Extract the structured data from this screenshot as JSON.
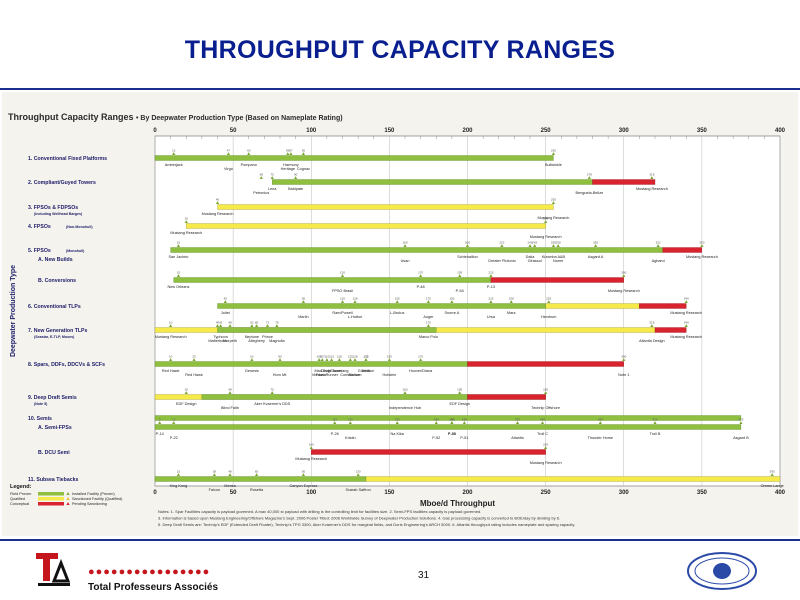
{
  "slide": {
    "title": "THROUGHPUT CAPACITY RANGES",
    "footer_dots": "●●●●●●●●●●●●●●●●",
    "footer_name": "Total Professeurs Associés",
    "page_number": "31"
  },
  "colors": {
    "proven": "#8fbf3f",
    "qualified": "#f5ea4a",
    "conceptual": "#d9232e",
    "marker_installed": "#7aa830",
    "marker_sanctioned": "#e0c020",
    "marker_pending": "#d9232e",
    "title_blue": "#0a1f8f",
    "label_blue": "#20206a"
  },
  "chart_data": {
    "type": "range-bar",
    "title": "Throughput Capacity Ranges",
    "subtitle": "• By Deepwater Production Type (Based on Nameplate Rating)",
    "xlabel": "Mboe/d Throughput",
    "ylabel": "Deepwater Production Type",
    "xlim": [
      0,
      400
    ],
    "xticks": [
      0,
      50,
      100,
      150,
      200,
      250,
      300,
      350,
      400
    ],
    "legend": {
      "title": "Legend:",
      "bars": [
        "Field Proven",
        "Qualified",
        "Conceptual"
      ],
      "markers": [
        "Installed Facility (Proven)",
        "Sanctioned Facility (Qualified)",
        "Pending Sanctioning"
      ]
    },
    "categories": [
      {
        "label": "1. Conventional Fixed Platforms",
        "sub": "",
        "proven": [
          0,
          255
        ],
        "qualified": null,
        "conceptual": null,
        "facilities": [
          {
            "name": "Amberjack",
            "x": 12
          },
          {
            "name": "Virgo",
            "x": 47
          },
          {
            "name": "Pompano",
            "x": 60
          },
          {
            "name": "Heritage",
            "x": 85
          },
          {
            "name": "Harmony",
            "x": 87
          },
          {
            "name": "Cognac",
            "x": 95
          },
          {
            "name": "Bullwinkle",
            "x": 255
          }
        ]
      },
      {
        "label": "2. Compliant/Guyed Towers",
        "sub": "",
        "proven": [
          75,
          280
        ],
        "qualified": null,
        "conceptual": [
          280,
          320
        ],
        "facilities": [
          {
            "name": "Lena",
            "x": 75
          },
          {
            "name": "Petronius",
            "x": 68
          },
          {
            "name": "Baldpate",
            "x": 90
          },
          {
            "name": "Benguela-Belize",
            "x": 278
          },
          {
            "name": "Mustang Research",
            "x": 318
          }
        ]
      },
      {
        "label": "3. FPSOs & FDPSOs",
        "sub": "(Including Wellhead Barges)",
        "proven": null,
        "qualified": [
          40,
          255
        ],
        "conceptual": null,
        "facilities": [
          {
            "name": "Mustang Research",
            "x": 40
          },
          {
            "name": "Mustang Research",
            "x": 255
          }
        ]
      },
      {
        "label": "4. FPSOs",
        "sub": "(Non-Monohull)",
        "proven": null,
        "qualified": [
          20,
          250
        ],
        "conceptual": null,
        "facilities": [
          {
            "name": "Mustang Research",
            "x": 20
          },
          {
            "name": "Mustang Research",
            "x": 250
          }
        ]
      },
      {
        "label": "5. FPSOs",
        "sub": "(Monohull)",
        "proven": [
          10,
          325
        ],
        "qualified": null,
        "conceptual": [
          325,
          350
        ],
        "facilities": [
          {
            "name": "San Jacinto",
            "x": 15
          },
          {
            "name": "Usan",
            "x": 160
          },
          {
            "name": "Schiehallion",
            "x": 200
          },
          {
            "name": "Greater Plutonio",
            "x": 222
          },
          {
            "name": "Dalia",
            "x": 240
          },
          {
            "name": "Girassol",
            "x": 243
          },
          {
            "name": "Kizomba A&B",
            "x": 255
          },
          {
            "name": "Norne",
            "x": 258
          },
          {
            "name": "Asgard A",
            "x": 282
          },
          {
            "name": "Agbami",
            "x": 322
          },
          {
            "name": "Mustang Research",
            "x": 350
          }
        ]
      },
      {
        "label": "A. New Builds",
        "sub": "",
        "proven": null,
        "qualified": null,
        "conceptual": null,
        "facilities": []
      },
      {
        "label": "B. Conversions",
        "sub": "",
        "proven": [
          12,
          215
        ],
        "qualified": null,
        "conceptual": [
          215,
          300
        ],
        "facilities": [
          {
            "name": "New Orleans",
            "x": 15
          },
          {
            "name": "FPSO Brasil",
            "x": 120
          },
          {
            "name": "P-48",
            "x": 170
          },
          {
            "name": "P-54",
            "x": 195
          },
          {
            "name": "P-13",
            "x": 215
          },
          {
            "name": "Mustang Research",
            "x": 300
          }
        ]
      },
      {
        "label": "6. Conventional TLPs",
        "sub": "",
        "proven": [
          40,
          250
        ],
        "qualified": [
          250,
          310
        ],
        "conceptual": [
          310,
          340
        ],
        "facilities": [
          {
            "name": "Joliet",
            "x": 45
          },
          {
            "name": "Marlin",
            "x": 95
          },
          {
            "name": "Ram/Powell",
            "x": 120
          },
          {
            "name": "L-Hutton",
            "x": 128
          },
          {
            "name": "L-Brutus",
            "x": 155
          },
          {
            "name": "Auger",
            "x": 175
          },
          {
            "name": "Snorre A",
            "x": 190
          },
          {
            "name": "Ursa",
            "x": 215
          },
          {
            "name": "Mars",
            "x": 228
          },
          {
            "name": "Hexdrum",
            "x": 252
          },
          {
            "name": "Mustang Research",
            "x": 340
          }
        ]
      },
      {
        "label": "7. New Generation TLPs",
        "sub": "(Seastar, E-TLP, Moses)",
        "proven": [
          40,
          180
        ],
        "qualified": [
          0,
          320
        ],
        "conceptual": [
          320,
          340
        ],
        "facilities": [
          {
            "name": "Mustang Research",
            "x": 10
          },
          {
            "name": "Matterhorn",
            "x": 40
          },
          {
            "name": "Typhoon",
            "x": 42
          },
          {
            "name": "Morpeth",
            "x": 48
          },
          {
            "name": "Neptune",
            "x": 62
          },
          {
            "name": "Allegheny",
            "x": 65
          },
          {
            "name": "Prince",
            "x": 72
          },
          {
            "name": "Magnolia",
            "x": 78
          },
          {
            "name": "Marco Polo",
            "x": 175
          },
          {
            "name": "Atlantia Design",
            "x": 318
          },
          {
            "name": "Mustang Research",
            "x": 340
          }
        ]
      },
      {
        "label": "8. Spars, DDFs, DDCVs & SCFs",
        "sub": "",
        "proven": [
          0,
          200
        ],
        "qualified": null,
        "conceptual": [
          200,
          300
        ],
        "facilities": [
          {
            "name": "Red Hawk",
            "x": 10
          },
          {
            "name": "Red Hawk",
            "x": 25
          },
          {
            "name": "Genesis",
            "x": 62
          },
          {
            "name": "Horn Mt.",
            "x": 80
          },
          {
            "name": "Mad Dog",
            "x": 107
          },
          {
            "name": "Front Runner",
            "x": 110
          },
          {
            "name": "Devils Tower",
            "x": 113
          },
          {
            "name": "Medusa",
            "x": 105
          },
          {
            "name": "Boomvang",
            "x": 118
          },
          {
            "name": "Nansen",
            "x": 128
          },
          {
            "name": "Gunnison",
            "x": 135
          },
          {
            "name": "Constitution",
            "x": 125
          },
          {
            "name": "Tahiti",
            "x": 135
          },
          {
            "name": "Holstein",
            "x": 150
          },
          {
            "name": "Hoover/Diana",
            "x": 170
          },
          {
            "name": "Note 1",
            "x": 300
          }
        ]
      },
      {
        "label": "9. Deep Draft Semis",
        "sub": "(Note 5)",
        "proven": [
          30,
          200
        ],
        "qualified": [
          0,
          250
        ],
        "conceptual": [
          200,
          250
        ],
        "facilities": [
          {
            "name": "EDF Design",
            "x": 20
          },
          {
            "name": "Blind Faith",
            "x": 48
          },
          {
            "name": "Aker Kvaerner's DDS",
            "x": 75
          },
          {
            "name": "Independence Hub",
            "x": 160
          },
          {
            "name": "EDF Design",
            "x": 195
          },
          {
            "name": "Technip Offshore",
            "x": 250
          }
        ]
      },
      {
        "label": "10. Semis",
        "sub": "",
        "proven": [
          0,
          375
        ],
        "qualified": null,
        "conceptual": null,
        "facilities": []
      },
      {
        "label": "A. Semi-FPSs",
        "sub": "",
        "proven": [
          0,
          375
        ],
        "qualified": null,
        "conceptual": null,
        "facilities": [
          {
            "name": "P-14",
            "x": 3
          },
          {
            "name": "P-22",
            "x": 12
          },
          {
            "name": "P-26",
            "x": 115
          },
          {
            "name": "Kristin",
            "x": 125
          },
          {
            "name": "Na Kika",
            "x": 155
          },
          {
            "name": "P-52",
            "x": 180
          },
          {
            "name": "P-40",
            "x": 190
          },
          {
            "name": "P-51",
            "x": 198
          },
          {
            "name": "P-36",
            "x": 190
          },
          {
            "name": "Atlantis",
            "x": 232
          },
          {
            "name": "Troll C",
            "x": 248
          },
          {
            "name": "Thunder Horse",
            "x": 285
          },
          {
            "name": "Troll B",
            "x": 320
          },
          {
            "name": "Asgard B",
            "x": 375
          }
        ]
      },
      {
        "label": "B. DCU Semi",
        "sub": "",
        "proven": null,
        "qualified": null,
        "conceptual": [
          100,
          250
        ],
        "facilities": [
          {
            "name": "Mustang Research",
            "x": 100
          },
          {
            "name": "Mustang Research",
            "x": 250
          }
        ]
      },
      {
        "label": "11. Subsea Tiebacks",
        "sub": "",
        "proven": [
          0,
          135
        ],
        "qualified": [
          135,
          400
        ],
        "conceptual": null,
        "facilities": [
          {
            "name": "King Kong",
            "x": 15
          },
          {
            "name": "Falcon",
            "x": 38
          },
          {
            "name": "Mensa",
            "x": 48
          },
          {
            "name": "Rosetta",
            "x": 65
          },
          {
            "name": "Canyon Express",
            "x": 95
          },
          {
            "name": "Scarab Saffron",
            "x": 130
          },
          {
            "name": "Ormen Lange",
            "x": 395
          }
        ]
      }
    ],
    "notes": [
      "Notes: 1. Spar Facilities capacity is payload governed. A max 40,000 st payload with drilling is the controlling limit for facilities size.  2. Semi-FPS facilities capacity is payload governed.",
      "3. Information is based upon Mustang Engineering/Offshore Magazine's Sept. 2006 Poster Titled: 2006 Worldwide Survey of Deepwater Production Solutions.  4. Gas processing capacity is converted to BOE/day by dividing by 6.",
      "5. Deep Draft Semis are: Technip's EDF (Extended Draft Floater), Technip's TPG 3300, Aker Kvaerner's DDS for marginal fields, and Doris Engineering's ARCH 5000.  6. Atlantis throughput rating includes nameplate and sparing capacity."
    ]
  }
}
